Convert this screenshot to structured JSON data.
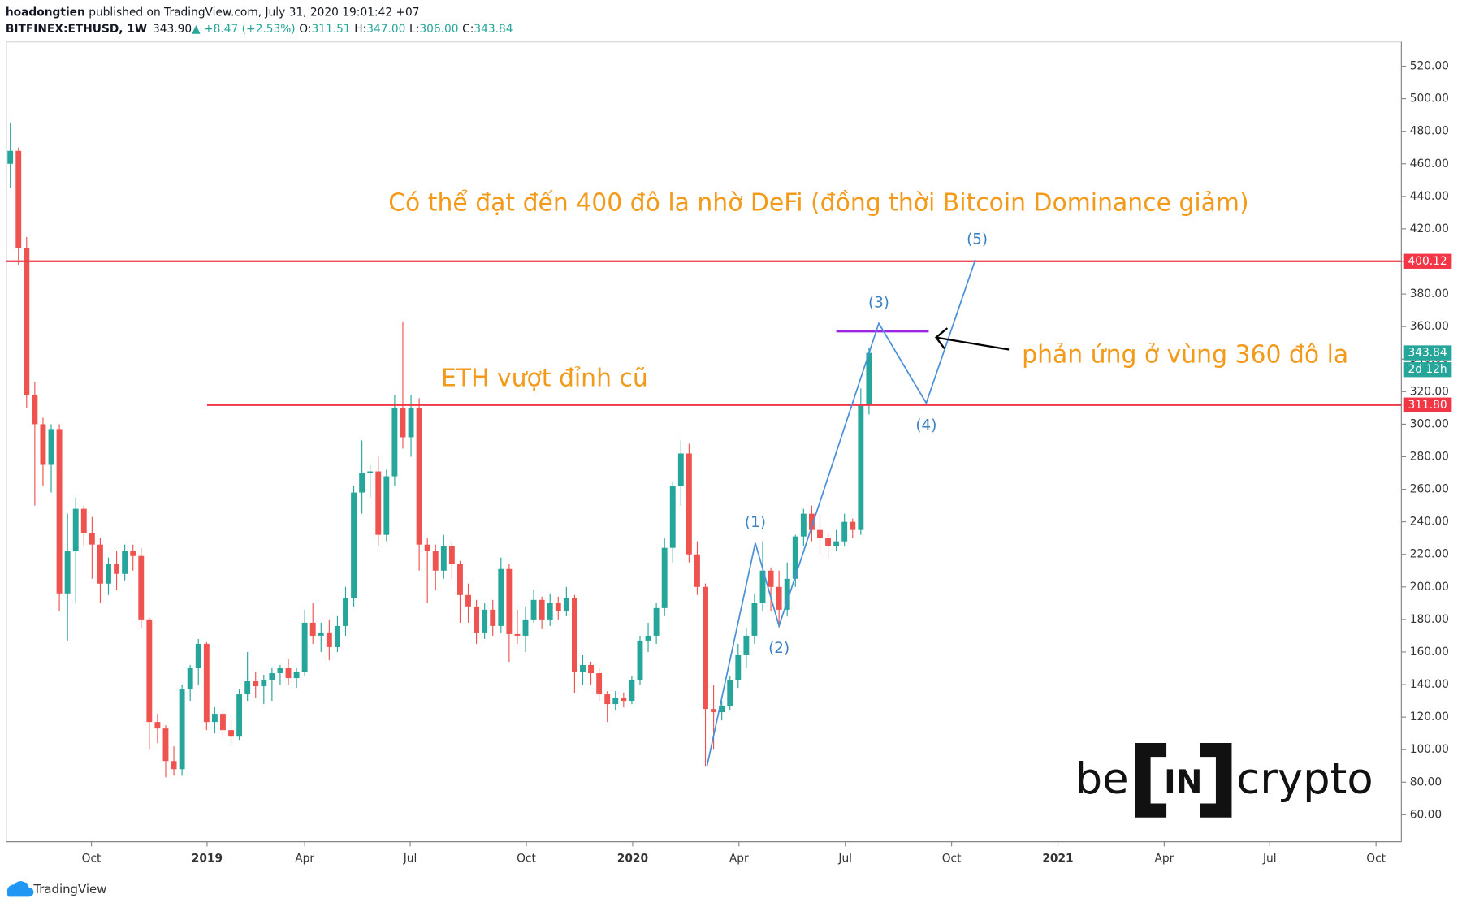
{
  "header": {
    "user": "hoadongtien",
    "published": " published on TradingView.com, July 31, 2020 19:01:42 +07",
    "line2": [
      "BITFINEX:ETHUSD, 1W",
      "343.90",
      "▲ +8.47 (+2.53%)",
      "O:",
      "311.51",
      "H:",
      "347.00",
      "L:",
      "306.00",
      "C:",
      "343.84"
    ]
  },
  "chart_data": {
    "type": "candlestick",
    "up_color": "#26a69a",
    "down_color": "#ef5350",
    "candles": [
      [
        460,
        485,
        445,
        468
      ],
      [
        468,
        470,
        398,
        408
      ],
      [
        408,
        415,
        310,
        318
      ],
      [
        318,
        326,
        250,
        300
      ],
      [
        300,
        304,
        262,
        275
      ],
      [
        275,
        300,
        258,
        297
      ],
      [
        297,
        300,
        185,
        196
      ],
      [
        196,
        245,
        167,
        222
      ],
      [
        222,
        255,
        190,
        248
      ],
      [
        248,
        250,
        225,
        233
      ],
      [
        233,
        243,
        205,
        226
      ],
      [
        226,
        230,
        190,
        202
      ],
      [
        202,
        218,
        195,
        214
      ],
      [
        214,
        222,
        198,
        208
      ],
      [
        208,
        226,
        204,
        222
      ],
      [
        222,
        226,
        210,
        219
      ],
      [
        219,
        224,
        175,
        180
      ],
      [
        180,
        181,
        100,
        117
      ],
      [
        117,
        122,
        104,
        113
      ],
      [
        113,
        115,
        83,
        93
      ],
      [
        93,
        102,
        84,
        88
      ],
      [
        88,
        140,
        84,
        137
      ],
      [
        137,
        152,
        130,
        150
      ],
      [
        150,
        168,
        140,
        165
      ],
      [
        165,
        166,
        112,
        117
      ],
      [
        117,
        126,
        110,
        122
      ],
      [
        122,
        124,
        108,
        112
      ],
      [
        112,
        118,
        103,
        108
      ],
      [
        108,
        137,
        106,
        134
      ],
      [
        134,
        160,
        130,
        142
      ],
      [
        142,
        148,
        132,
        139
      ],
      [
        139,
        146,
        128,
        143
      ],
      [
        143,
        150,
        130,
        147
      ],
      [
        147,
        152,
        140,
        150
      ],
      [
        150,
        156,
        140,
        144
      ],
      [
        144,
        150,
        138,
        148
      ],
      [
        148,
        186,
        145,
        178
      ],
      [
        178,
        190,
        165,
        170
      ],
      [
        170,
        178,
        160,
        172
      ],
      [
        172,
        180,
        155,
        163
      ],
      [
        163,
        182,
        160,
        176
      ],
      [
        176,
        200,
        170,
        193
      ],
      [
        193,
        262,
        188,
        258
      ],
      [
        258,
        290,
        245,
        270
      ],
      [
        270,
        275,
        255,
        271
      ],
      [
        271,
        280,
        225,
        232
      ],
      [
        232,
        272,
        228,
        268
      ],
      [
        268,
        318,
        262,
        310
      ],
      [
        310,
        363,
        285,
        292
      ],
      [
        292,
        318,
        280,
        310
      ],
      [
        310,
        316,
        210,
        226
      ],
      [
        226,
        230,
        190,
        222
      ],
      [
        222,
        226,
        198,
        210
      ],
      [
        210,
        232,
        205,
        225
      ],
      [
        225,
        228,
        205,
        214
      ],
      [
        214,
        216,
        178,
        195
      ],
      [
        195,
        202,
        178,
        188
      ],
      [
        188,
        192,
        165,
        172
      ],
      [
        172,
        190,
        168,
        186
      ],
      [
        186,
        192,
        170,
        176
      ],
      [
        176,
        218,
        172,
        211
      ],
      [
        211,
        214,
        154,
        171
      ],
      [
        171,
        186,
        165,
        170
      ],
      [
        170,
        188,
        160,
        180
      ],
      [
        180,
        198,
        178,
        192
      ],
      [
        192,
        194,
        174,
        180
      ],
      [
        180,
        196,
        176,
        190
      ],
      [
        190,
        194,
        180,
        185
      ],
      [
        185,
        200,
        182,
        193
      ],
      [
        193,
        195,
        135,
        148
      ],
      [
        148,
        158,
        140,
        152
      ],
      [
        152,
        154,
        140,
        147
      ],
      [
        147,
        150,
        130,
        134
      ],
      [
        134,
        136,
        117,
        128
      ],
      [
        128,
        136,
        124,
        132
      ],
      [
        132,
        135,
        126,
        130
      ],
      [
        130,
        145,
        128,
        143
      ],
      [
        143,
        170,
        140,
        167
      ],
      [
        167,
        178,
        160,
        170
      ],
      [
        170,
        190,
        165,
        187
      ],
      [
        187,
        230,
        182,
        224
      ],
      [
        224,
        265,
        215,
        262
      ],
      [
        262,
        290,
        250,
        282
      ],
      [
        282,
        288,
        215,
        220
      ],
      [
        220,
        228,
        195,
        200
      ],
      [
        200,
        202,
        90,
        125
      ],
      [
        125,
        140,
        100,
        123
      ],
      [
        123,
        130,
        118,
        127
      ],
      [
        127,
        145,
        124,
        143
      ],
      [
        143,
        165,
        138,
        158
      ],
      [
        158,
        175,
        150,
        170
      ],
      [
        170,
        196,
        165,
        190
      ],
      [
        190,
        228,
        185,
        210
      ],
      [
        210,
        212,
        185,
        200
      ],
      [
        200,
        210,
        175,
        186
      ],
      [
        186,
        215,
        182,
        205
      ],
      [
        205,
        232,
        200,
        231
      ],
      [
        231,
        248,
        225,
        245
      ],
      [
        245,
        250,
        228,
        235
      ],
      [
        235,
        245,
        220,
        230
      ],
      [
        230,
        233,
        218,
        225
      ],
      [
        225,
        235,
        222,
        228
      ],
      [
        228,
        245,
        225,
        240
      ],
      [
        240,
        242,
        230,
        235
      ],
      [
        235,
        322,
        232,
        311.51
      ],
      [
        311.51,
        347,
        306,
        343.84
      ]
    ],
    "xlim": [
      -0.46,
      170.1
    ],
    "xticks": [
      {
        "value": 9.92,
        "label": "Oct"
      },
      {
        "value": 24.06,
        "label": "2019"
      },
      {
        "value": 36.0,
        "label": "Apr"
      },
      {
        "value": 48.9,
        "label": "Jul"
      },
      {
        "value": 63.1,
        "label": "Oct"
      },
      {
        "value": 76.1,
        "label": "2020"
      },
      {
        "value": 89.1,
        "label": "Apr"
      },
      {
        "value": 102.1,
        "label": "Jul"
      },
      {
        "value": 115.1,
        "label": "Oct"
      },
      {
        "value": 128.1,
        "label": "2021"
      },
      {
        "value": 141.1,
        "label": "Apr"
      },
      {
        "value": 154.0,
        "label": "Jul"
      },
      {
        "value": 167.0,
        "label": "Oct"
      }
    ],
    "ylim": [
      43.4,
      534.9
    ],
    "yticks": [
      {
        "value": 60,
        "label": "60.00"
      },
      {
        "value": 80,
        "label": "80.00"
      },
      {
        "value": 100,
        "label": "100.00"
      },
      {
        "value": 120,
        "label": "120.00"
      },
      {
        "value": 140,
        "label": "140.00"
      },
      {
        "value": 160,
        "label": "160.00"
      },
      {
        "value": 180,
        "label": "180.00"
      },
      {
        "value": 200,
        "label": "200.00"
      },
      {
        "value": 220,
        "label": "220.00"
      },
      {
        "value": 240,
        "label": "240.00"
      },
      {
        "value": 260,
        "label": "260.00"
      },
      {
        "value": 280,
        "label": "280.00"
      },
      {
        "value": 300,
        "label": "300.00"
      },
      {
        "value": 320,
        "label": "320.00"
      },
      {
        "value": 340,
        "label": "340.00"
      },
      {
        "value": 360,
        "label": "360.00"
      },
      {
        "value": 380,
        "label": "380.00"
      },
      {
        "value": 400,
        "label": "400.00"
      },
      {
        "value": 420,
        "label": "420.00"
      },
      {
        "value": 440,
        "label": "440.00"
      },
      {
        "value": 460,
        "label": "460.00"
      },
      {
        "value": 480,
        "label": "480.00"
      },
      {
        "value": 500,
        "label": "500.00"
      },
      {
        "value": 520,
        "label": "520.00"
      }
    ],
    "grid": false,
    "hlines": [
      {
        "y": 400.12,
        "x_from": -0.46,
        "color": "#f23645"
      },
      {
        "y": {
          "value": 311.8,
          "label": "311.80"
        },
        "x_from": 24.06,
        "color": "#f23645"
      }
    ],
    "last_price": 343.84,
    "countdown": "2d 12h",
    "elliott_wave": {
      "x": [
        85.2,
        91.1,
        94,
        106.2,
        112,
        118
      ],
      "y": [
        90,
        227,
        176,
        362,
        313,
        401
      ],
      "labels": [
        "(1)",
        "(2)",
        "(3)",
        "(4)",
        "(5)"
      ],
      "color": "#4a90d9"
    },
    "purple_line": {
      "y": 357,
      "x": [
        101,
        112.3
      ],
      "color": "#9c27e0"
    },
    "annotations": [
      "Có thể đạt đến 400 đô la nhờ DeFi (đồng thời Bitcoin Dominance giảm)",
      "ETH vượt đỉnh cũ",
      "phản ứng ở vùng 360 đô la"
    ]
  },
  "logo": {
    "be": "be",
    "in": "IN",
    "crypto": "crypto"
  },
  "footer": "TradingView"
}
